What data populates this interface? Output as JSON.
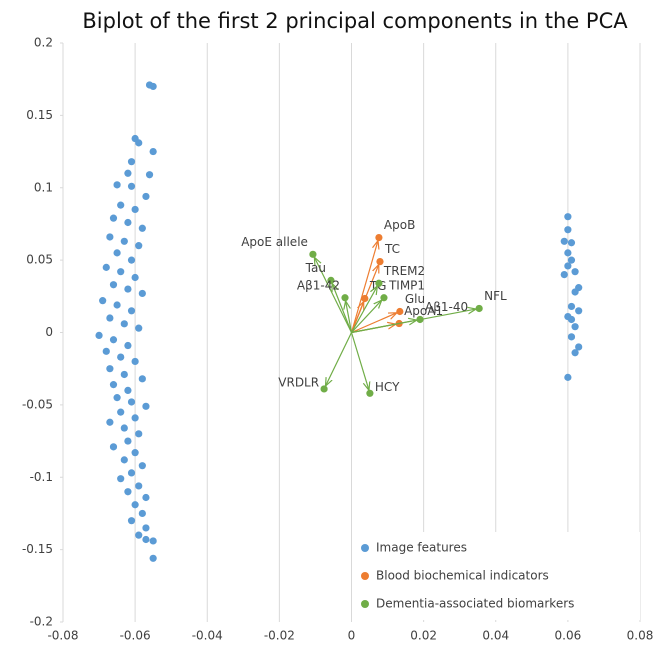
{
  "chart_data": {
    "type": "scatter",
    "title": "Biplot of the first 2 principal components in the PCA",
    "xlim": [
      -0.08,
      0.08
    ],
    "xticks": [
      -0.08,
      -0.06,
      -0.04,
      -0.02,
      0,
      0.02,
      0.04,
      0.06,
      0.08
    ],
    "ylim": [
      -0.2,
      0.2
    ],
    "yticks": [
      -0.2,
      -0.15,
      -0.1,
      -0.05,
      0,
      0.05,
      0.1,
      0.15,
      0.2
    ],
    "grid": "vertical",
    "legend": "lower right",
    "series": [
      {
        "name": "Image features",
        "color": "#5b9bd5",
        "arrows": false,
        "x": [
          -0.056,
          -0.055,
          -0.06,
          -0.059,
          -0.055,
          -0.061,
          -0.062,
          -0.056,
          -0.065,
          -0.061,
          -0.057,
          -0.064,
          -0.06,
          -0.066,
          -0.062,
          -0.058,
          -0.067,
          -0.063,
          -0.059,
          -0.065,
          -0.061,
          -0.068,
          -0.064,
          -0.06,
          -0.066,
          -0.062,
          -0.058,
          -0.069,
          -0.065,
          -0.061,
          -0.067,
          -0.063,
          -0.059,
          -0.07,
          -0.066,
          -0.062,
          -0.068,
          -0.064,
          -0.06,
          -0.067,
          -0.063,
          -0.058,
          -0.066,
          -0.062,
          -0.065,
          -0.061,
          -0.057,
          -0.064,
          -0.06,
          -0.067,
          -0.063,
          -0.059,
          -0.062,
          -0.066,
          -0.06,
          -0.063,
          -0.058,
          -0.061,
          -0.064,
          -0.059,
          -0.062,
          -0.057,
          -0.06,
          -0.058,
          -0.061,
          -0.057,
          -0.059,
          -0.055,
          -0.057,
          -0.055,
          0.06,
          0.06,
          0.059,
          0.061,
          0.06,
          0.061,
          0.06,
          0.062,
          0.059,
          0.063,
          0.062,
          0.061,
          0.063,
          0.06,
          0.061,
          0.062,
          0.061,
          0.063,
          0.062,
          0.06
        ],
        "y": [
          0.171,
          0.17,
          0.134,
          0.131,
          0.125,
          0.118,
          0.11,
          0.109,
          0.102,
          0.101,
          0.094,
          0.088,
          0.085,
          0.079,
          0.076,
          0.072,
          0.066,
          0.063,
          0.06,
          0.055,
          0.05,
          0.045,
          0.042,
          0.038,
          0.033,
          0.03,
          0.027,
          0.022,
          0.019,
          0.015,
          0.01,
          0.006,
          0.003,
          -0.002,
          -0.005,
          -0.009,
          -0.013,
          -0.017,
          -0.02,
          -0.025,
          -0.029,
          -0.032,
          -0.036,
          -0.04,
          -0.045,
          -0.048,
          -0.051,
          -0.055,
          -0.059,
          -0.062,
          -0.066,
          -0.07,
          -0.075,
          -0.079,
          -0.083,
          -0.088,
          -0.092,
          -0.097,
          -0.101,
          -0.106,
          -0.11,
          -0.114,
          -0.119,
          -0.125,
          -0.13,
          -0.135,
          -0.14,
          -0.144,
          -0.143,
          -0.156,
          0.08,
          0.071,
          0.063,
          0.062,
          0.055,
          0.05,
          0.046,
          0.042,
          0.04,
          0.031,
          0.028,
          0.018,
          0.015,
          0.011,
          0.009,
          0.004,
          -0.003,
          -0.01,
          -0.014,
          -0.031
        ]
      },
      {
        "name": "Blood biochemical indicators",
        "color": "#ed7d31",
        "arrows": true,
        "labels": [
          "ApoB",
          "TC",
          "TG",
          "Glu",
          "ApoA1"
        ],
        "x": [
          0.0076,
          0.0079,
          0.0037,
          0.0134,
          0.0132
        ],
        "y": [
          0.0656,
          0.049,
          0.0235,
          0.0145,
          0.0062
        ]
      },
      {
        "name": "Dementia-associated biomarkers",
        "color": "#70ad47",
        "arrows": true,
        "labels": [
          "ApoE allele",
          "Tau",
          "Aβ1-42",
          "TREM2",
          "TIMP1",
          "Aβ1-40",
          "NFL",
          "VRDLR",
          "HCY"
        ],
        "x": [
          -0.0107,
          -0.0057,
          -0.0018,
          0.0076,
          0.009,
          0.019,
          0.0354,
          -0.0076,
          0.0051
        ],
        "y": [
          0.054,
          0.036,
          0.024,
          0.034,
          0.024,
          0.009,
          0.0166,
          -0.039,
          -0.042
        ]
      }
    ]
  }
}
